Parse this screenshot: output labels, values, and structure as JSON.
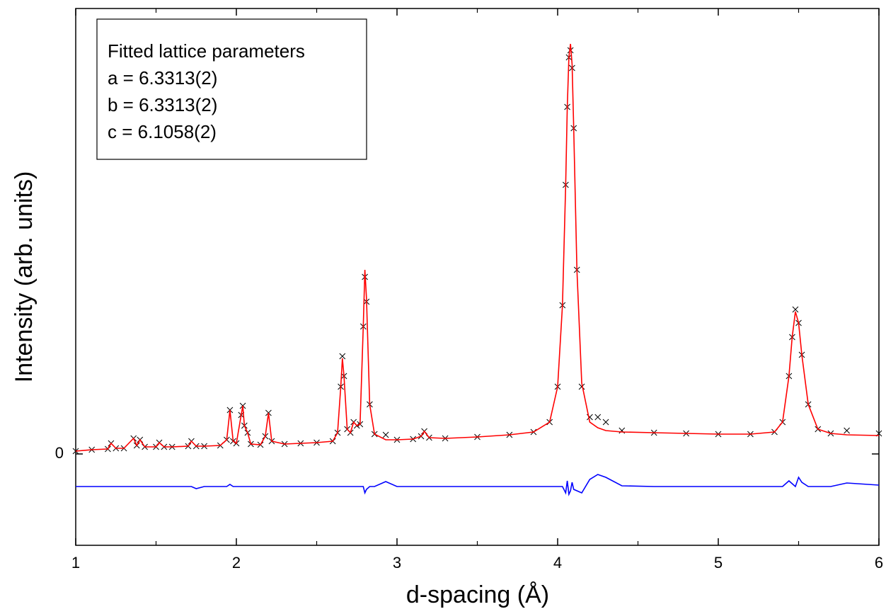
{
  "chart_data": {
    "type": "scatter",
    "xlabel": "d-spacing (Å)",
    "ylabel": "Intensity (arb. units)",
    "annotation": {
      "lines": [
        "Fitted lattice parameters",
        "a = 6.3313(2)",
        "b = 6.3313(2)",
        "c = 6.1058(2)"
      ],
      "color": "#ff0000"
    },
    "xlim": [
      1,
      6
    ],
    "xticks": [
      1,
      2,
      3,
      4,
      5,
      6
    ],
    "ylim": [
      -1.29,
      6.29
    ],
    "yticks": [
      0
    ],
    "x": [
      1.0,
      1.1,
      1.2,
      1.22,
      1.25,
      1.3,
      1.36,
      1.38,
      1.4,
      1.43,
      1.5,
      1.52,
      1.55,
      1.6,
      1.7,
      1.72,
      1.75,
      1.8,
      1.9,
      1.94,
      1.96,
      1.98,
      2.0,
      2.03,
      2.04,
      2.05,
      2.07,
      2.09,
      2.15,
      2.18,
      2.2,
      2.22,
      2.3,
      2.4,
      2.5,
      2.6,
      2.63,
      2.65,
      2.66,
      2.67,
      2.69,
      2.71,
      2.73,
      2.75,
      2.77,
      2.79,
      2.8,
      2.81,
      2.83,
      2.86,
      2.93,
      3.0,
      3.1,
      3.15,
      3.17,
      3.2,
      3.3,
      3.5,
      3.7,
      3.85,
      3.95,
      4.0,
      4.03,
      4.05,
      4.06,
      4.07,
      4.08,
      4.09,
      4.1,
      4.12,
      4.15,
      4.2,
      4.25,
      4.3,
      4.4,
      4.6,
      4.8,
      5.0,
      5.2,
      5.35,
      5.4,
      5.44,
      5.46,
      5.48,
      5.5,
      5.52,
      5.56,
      5.62,
      5.7,
      5.8,
      6.0
    ],
    "series": [
      {
        "style": "markers",
        "color": "#000000",
        "values": [
          0.04,
          0.06,
          0.07,
          0.15,
          0.08,
          0.08,
          0.22,
          0.12,
          0.2,
          0.1,
          0.1,
          0.16,
          0.1,
          0.1,
          0.11,
          0.18,
          0.11,
          0.11,
          0.12,
          0.2,
          0.62,
          0.18,
          0.15,
          0.55,
          0.68,
          0.4,
          0.3,
          0.14,
          0.13,
          0.25,
          0.58,
          0.18,
          0.14,
          0.15,
          0.16,
          0.18,
          0.3,
          0.95,
          1.38,
          1.1,
          0.35,
          0.3,
          0.45,
          0.4,
          0.42,
          1.8,
          2.5,
          2.15,
          0.7,
          0.28,
          0.27,
          0.2,
          0.21,
          0.25,
          0.32,
          0.23,
          0.22,
          0.24,
          0.27,
          0.31,
          0.45,
          0.95,
          2.1,
          3.8,
          4.9,
          5.6,
          5.7,
          5.45,
          4.6,
          2.6,
          0.95,
          0.52,
          0.52,
          0.45,
          0.33,
          0.3,
          0.29,
          0.28,
          0.28,
          0.31,
          0.45,
          1.1,
          1.65,
          2.04,
          1.85,
          1.4,
          0.7,
          0.35,
          0.29,
          0.33,
          0.29
        ]
      },
      {
        "style": "line",
        "color": "#ff0000",
        "values": [
          0.04,
          0.06,
          0.07,
          0.15,
          0.08,
          0.08,
          0.22,
          0.12,
          0.2,
          0.1,
          0.1,
          0.16,
          0.1,
          0.1,
          0.11,
          0.18,
          0.11,
          0.11,
          0.12,
          0.2,
          0.62,
          0.18,
          0.15,
          0.55,
          0.68,
          0.4,
          0.3,
          0.14,
          0.13,
          0.25,
          0.58,
          0.18,
          0.14,
          0.15,
          0.16,
          0.18,
          0.3,
          0.95,
          1.35,
          1.1,
          0.35,
          0.3,
          0.45,
          0.4,
          0.42,
          1.8,
          2.6,
          2.2,
          0.7,
          0.28,
          0.2,
          0.2,
          0.21,
          0.25,
          0.32,
          0.23,
          0.22,
          0.24,
          0.27,
          0.31,
          0.45,
          0.95,
          2.1,
          3.8,
          4.9,
          5.6,
          5.79,
          5.5,
          4.6,
          2.6,
          1.0,
          0.45,
          0.37,
          0.33,
          0.31,
          0.3,
          0.29,
          0.28,
          0.28,
          0.31,
          0.45,
          1.1,
          1.65,
          2.01,
          1.85,
          1.4,
          0.7,
          0.35,
          0.29,
          0.27,
          0.26
        ]
      },
      {
        "style": "line",
        "color": "#0000ff",
        "values": [
          -0.46,
          -0.46,
          -0.46,
          -0.46,
          -0.46,
          -0.46,
          -0.46,
          -0.46,
          -0.46,
          -0.46,
          -0.46,
          -0.46,
          -0.46,
          -0.46,
          -0.46,
          -0.46,
          -0.49,
          -0.46,
          -0.46,
          -0.46,
          -0.43,
          -0.46,
          -0.46,
          -0.46,
          -0.46,
          -0.46,
          -0.46,
          -0.46,
          -0.46,
          -0.46,
          -0.46,
          -0.46,
          -0.46,
          -0.46,
          -0.46,
          -0.46,
          -0.46,
          -0.46,
          -0.46,
          -0.46,
          -0.46,
          -0.46,
          -0.46,
          -0.46,
          -0.46,
          -0.46,
          -0.55,
          -0.5,
          -0.46,
          -0.46,
          -0.39,
          -0.46,
          -0.46,
          -0.46,
          -0.46,
          -0.46,
          -0.46,
          -0.46,
          -0.46,
          -0.46,
          -0.46,
          -0.46,
          -0.46,
          -0.55,
          -0.38,
          -0.57,
          -0.52,
          -0.4,
          -0.5,
          -0.52,
          -0.55,
          -0.36,
          -0.29,
          -0.33,
          -0.45,
          -0.46,
          -0.46,
          -0.46,
          -0.46,
          -0.46,
          -0.46,
          -0.38,
          -0.42,
          -0.46,
          -0.33,
          -0.4,
          -0.46,
          -0.46,
          -0.46,
          -0.41,
          -0.44
        ]
      }
    ]
  }
}
